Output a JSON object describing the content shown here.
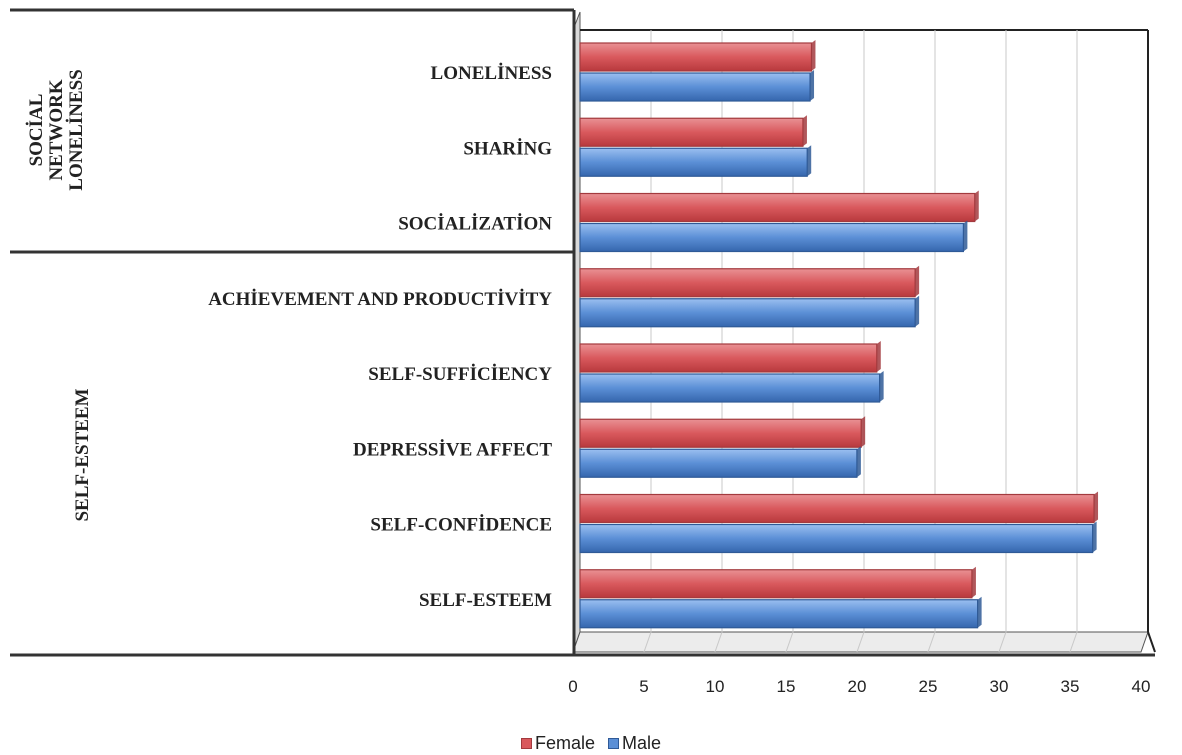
{
  "chart_data": {
    "type": "bar",
    "orientation": "horizontal",
    "categories": [
      "SELF-ESTEEM",
      "SELF-CONFİDENCE",
      "DEPRESSİVE AFFECT",
      "SELF-SUFFİCİENCY",
      "ACHİEVEMENT AND PRODUCTİVİTY",
      "SOCİALİZATİON",
      "SHARİNG",
      "LONELİNESS"
    ],
    "groups": [
      {
        "label_lines": [
          "SELF-ESTEEM"
        ],
        "categories": [
          "SELF-ESTEEM",
          "SELF-CONFİDENCE",
          "DEPRESSİVE AFFECT",
          "SELF-SUFFİCİENCY",
          "ACHİEVEMENT AND PRODUCTİVİTY"
        ]
      },
      {
        "label_lines": [
          "SOCİAL",
          "NETWORK",
          "LONELİNESS"
        ],
        "categories": [
          "SOCİALİZATİON",
          "SHARİNG",
          "LONELİNESS"
        ]
      }
    ],
    "series": [
      {
        "name": "Female",
        "color": "#d9595d",
        "values": [
          27.6,
          36.2,
          19.8,
          20.9,
          23.6,
          27.8,
          15.7,
          16.3
        ]
      },
      {
        "name": "Male",
        "color": "#5b8fd6",
        "values": [
          28.0,
          36.1,
          19.5,
          21.1,
          23.6,
          27.0,
          16.0,
          16.2
        ]
      }
    ],
    "xlim": [
      0,
      40
    ],
    "xticks": [
      "0",
      "5",
      "10",
      "15",
      "20",
      "25",
      "30",
      "35",
      "40"
    ],
    "grid": true,
    "legend": "bottom"
  }
}
